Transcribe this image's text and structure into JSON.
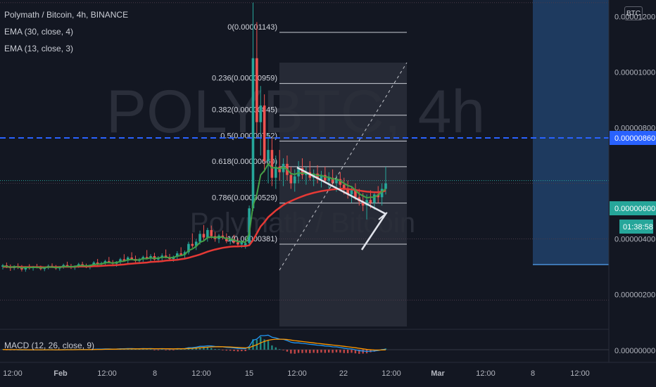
{
  "header": {
    "title": "Polymath / Bitcoin, 4h, BINANCE",
    "currency_badge": "BTC"
  },
  "watermark": {
    "symbol": "POLYBTC, 4h",
    "name": "Polymath / Bitcoin"
  },
  "indicators": {
    "ema_slow": "EMA (30, close, 4)",
    "ema_fast": "EMA (13, close, 3)",
    "macd": "MACD (12, 26, close, 9)"
  },
  "colors": {
    "background": "#131722",
    "up": "#26a69a",
    "down": "#ef5350",
    "ema_slow": "#e53935",
    "ema_fast": "#43a047",
    "fib_zone": "#2a2e39",
    "alert_line": "#2962ff",
    "price_tag": "#26a69a",
    "projection": "#1e3a5f"
  },
  "chart_data": {
    "type": "candlestick",
    "title": "Polymath / Bitcoin, 4h, BINANCE",
    "y_axis": {
      "ticks": [
        "0.00001200",
        "0.00001000",
        "0.00000800",
        "0.00000400",
        "0.00000200",
        "0.00000000"
      ],
      "tick_values": [
        1.2e-05,
        1e-05,
        8e-06,
        4e-06,
        2e-06,
        0.0
      ],
      "range": [
        1.6e-06,
        1.24e-05
      ],
      "scale": "linear"
    },
    "x_axis": {
      "ticks": [
        "12:00",
        "Feb",
        "12:00",
        "8",
        "12:00",
        "15",
        "12:00",
        "22",
        "12:00",
        "Mar",
        "12:00",
        "8",
        "12:00"
      ]
    },
    "price_tags": {
      "current_price": "0.00000600",
      "countdown": "01:38:58",
      "alert_price": "0.00000860"
    },
    "alert_level": 8.6e-06,
    "fibonacci": [
      {
        "level": "0",
        "price": "0.00001143",
        "label": "0(0.00001143)"
      },
      {
        "level": "0.236",
        "price": "0.00000959",
        "label": "0.236(0.00000959)"
      },
      {
        "level": "0.382",
        "price": "0.00000845",
        "label": "0.382(0.00000845)"
      },
      {
        "level": "0.5",
        "price": "0.00000752",
        "label": "0.5(0.00000752)"
      },
      {
        "level": "0.618",
        "price": "0.00000660",
        "label": "0.618(0.00000660)"
      },
      {
        "level": "0.786",
        "price": "0.00000529",
        "label": "0.786(0.00000529)"
      },
      {
        "level": "1",
        "price": "0.00000381",
        "label": "1(0.00000381)"
      }
    ],
    "macd_zero": "0.00000000",
    "ohlc": [
      [
        3e-06,
        3.1e-06,
        2.9e-06,
        3.05e-06
      ],
      [
        3.05e-06,
        3.15e-06,
        2.95e-06,
        3e-06
      ],
      [
        3e-06,
        3.08e-06,
        2.85e-06,
        2.95e-06
      ],
      [
        2.95e-06,
        3.05e-06,
        2.88e-06,
        3.02e-06
      ],
      [
        3.02e-06,
        3.12e-06,
        2.92e-06,
        2.98e-06
      ],
      [
        2.98e-06,
        3.06e-06,
        2.83e-06,
        2.9e-06
      ],
      [
        2.9e-06,
        3.02e-06,
        2.82e-06,
        3e-06
      ],
      [
        3e-06,
        3.09e-06,
        2.9e-06,
        2.95e-06
      ],
      [
        2.95e-06,
        3.03e-06,
        2.86e-06,
        3.01e-06
      ],
      [
        3.01e-06,
        3.1e-06,
        2.94e-06,
        2.97e-06
      ],
      [
        2.97e-06,
        3.04e-06,
        2.87e-06,
        2.92e-06
      ],
      [
        2.92e-06,
        3e-06,
        2.84e-06,
        2.98e-06
      ],
      [
        2.98e-06,
        3.08e-06,
        2.91e-06,
        3.03e-06
      ],
      [
        3.03e-06,
        3.12e-06,
        2.96e-06,
        2.99e-06
      ],
      [
        2.99e-06,
        3.06e-06,
        2.89e-06,
        2.94e-06
      ],
      [
        2.94e-06,
        3.02e-06,
        2.86e-06,
        3e-06
      ],
      [
        3e-06,
        3.11e-06,
        2.93e-06,
        3.06e-06
      ],
      [
        3.06e-06,
        3.18e-06,
        2.98e-06,
        3.02e-06
      ],
      [
        3.02e-06,
        3.1e-06,
        2.92e-06,
        2.97e-06
      ],
      [
        2.97e-06,
        3.05e-06,
        2.89e-06,
        3.03e-06
      ],
      [
        3.03e-06,
        3.14e-06,
        2.96e-06,
        3.09e-06
      ],
      [
        3.09e-06,
        3.18e-06,
        3e-06,
        3.04e-06
      ],
      [
        3.04e-06,
        3.11e-06,
        2.95e-06,
        3e-06
      ],
      [
        3e-06,
        3.08e-06,
        2.91e-06,
        3.06e-06
      ],
      [
        3.06e-06,
        3.2e-06,
        3e-06,
        3.15e-06
      ],
      [
        3.15e-06,
        3.28e-06,
        3.05e-06,
        3.1e-06
      ],
      [
        3.1e-06,
        3.18e-06,
        3e-06,
        3.13e-06
      ],
      [
        3.13e-06,
        3.25e-06,
        3.06e-06,
        3.2e-06
      ],
      [
        3.2e-06,
        3.35e-06,
        3.12e-06,
        3.16e-06
      ],
      [
        3.16e-06,
        3.24e-06,
        3.05e-06,
        3.11e-06
      ],
      [
        3.11e-06,
        3.2e-06,
        3e-06,
        3.18e-06
      ],
      [
        3.18e-06,
        3.32e-06,
        3.1e-06,
        3.27e-06
      ],
      [
        3.27e-06,
        3.45e-06,
        3.18e-06,
        3.22e-06
      ],
      [
        3.22e-06,
        3.38e-06,
        3.12e-06,
        3.33e-06
      ],
      [
        3.33e-06,
        3.52e-06,
        3.25e-06,
        3.28e-06
      ],
      [
        3.28e-06,
        3.4e-06,
        3.16e-06,
        3.21e-06
      ],
      [
        3.21e-06,
        3.32e-06,
        3.1e-06,
        3.27e-06
      ],
      [
        3.27e-06,
        3.4e-06,
        3.18e-06,
        3.35e-06
      ],
      [
        3.35e-06,
        3.6e-06,
        3.26e-06,
        3.3e-06
      ],
      [
        3.3e-06,
        3.45e-06,
        3.2e-06,
        3.38e-06
      ],
      [
        3.38e-06,
        3.5e-06,
        3.22e-06,
        3.26e-06
      ],
      [
        3.26e-06,
        3.38e-06,
        3.15e-06,
        3.32e-06
      ],
      [
        3.32e-06,
        3.48e-06,
        3.22e-06,
        3.4e-06
      ],
      [
        3.4e-06,
        3.62e-06,
        3.3e-06,
        3.34e-06
      ],
      [
        3.34e-06,
        3.46e-06,
        3.2e-06,
        3.28e-06
      ],
      [
        3.28e-06,
        3.4e-06,
        3.18e-06,
        3.36e-06
      ],
      [
        3.36e-06,
        3.56e-06,
        3.28e-06,
        3.48e-06
      ],
      [
        3.48e-06,
        3.7e-06,
        3.38e-06,
        3.43e-06
      ],
      [
        3.43e-06,
        3.58e-06,
        3.3e-06,
        3.52e-06
      ],
      [
        3.52e-06,
        3.9e-06,
        3.44e-06,
        3.82e-06
      ],
      [
        3.82e-06,
        4.2e-06,
        3.68e-06,
        3.75e-06
      ],
      [
        3.75e-06,
        4e-06,
        3.6e-06,
        3.9e-06
      ],
      [
        3.9e-06,
        4.3e-06,
        3.8e-06,
        4.18e-06
      ],
      [
        4.18e-06,
        4.5e-06,
        3.95e-06,
        4.05e-06
      ],
      [
        4.05e-06,
        4.4e-06,
        3.9e-06,
        4.32e-06
      ],
      [
        4.32e-06,
        4.48e-06,
        4.02e-06,
        4.1e-06
      ],
      [
        4.1e-06,
        4.25e-06,
        3.9e-06,
        4e-06
      ],
      [
        4e-06,
        4.18e-06,
        3.85e-06,
        4.12e-06
      ],
      [
        4.12e-06,
        4.3e-06,
        3.98e-06,
        4.05e-06
      ],
      [
        4.05e-06,
        4.2e-06,
        3.85e-06,
        3.92e-06
      ],
      [
        3.92e-06,
        4.08e-06,
        3.8e-06,
        3.98e-06
      ],
      [
        3.98e-06,
        4.15e-06,
        3.84e-06,
        3.88e-06
      ],
      [
        3.88e-06,
        4e-06,
        3.72e-06,
        3.8e-06
      ],
      [
        3.8e-06,
        3.96e-06,
        3.68e-06,
        3.9e-06
      ],
      [
        3.75e-06,
        3.95e-06,
        3.65e-06,
        3.85e-06
      ],
      [
        3.85e-06,
        5.2e-06,
        3.8e-06,
        5.1e-06
      ],
      [
        5.1e-06,
        1.25e-05,
        5e-06,
        1.05e-05
      ],
      [
        1.05e-05,
        1.18e-05,
        7.8e-06,
        8.2e-06
      ],
      [
        8.2e-06,
        9.5e-06,
        7e-06,
        8.8e-06
      ],
      [
        8.8e-06,
        9.2e-06,
        6.4e-06,
        6.8e-06
      ],
      [
        6.8e-06,
        7.8e-06,
        6e-06,
        7.2e-06
      ],
      [
        7.2e-06,
        7.6e-06,
        5.9e-06,
        6.2e-06
      ],
      [
        6.2e-06,
        7e-06,
        5.8e-06,
        6.6e-06
      ],
      [
        6.6e-06,
        7.2e-06,
        6.1e-06,
        6.4e-06
      ],
      [
        6.4e-06,
        6.9e-06,
        5.9e-06,
        6.7e-06
      ],
      [
        6.7e-06,
        7e-06,
        6.1e-06,
        6.3e-06
      ],
      [
        6.3e-06,
        6.6e-06,
        5.8e-06,
        6e-06
      ],
      [
        6e-06,
        6.5e-06,
        5.7e-06,
        6.25e-06
      ],
      [
        6.25e-06,
        6.8e-06,
        6e-06,
        6.55e-06
      ],
      [
        6.55e-06,
        6.9e-06,
        6.15e-06,
        6.3e-06
      ],
      [
        6.3e-06,
        6.6e-06,
        5.95e-06,
        6.4e-06
      ],
      [
        6.4e-06,
        6.8e-06,
        6.1e-06,
        6.2e-06
      ],
      [
        6.2e-06,
        6.5e-06,
        5.9e-06,
        6.35e-06
      ],
      [
        6.35e-06,
        6.65e-06,
        6e-06,
        6.15e-06
      ],
      [
        6.15e-06,
        6.45e-06,
        5.85e-06,
        6.3e-06
      ],
      [
        6.3e-06,
        6.6e-06,
        6e-06,
        6.1e-06
      ],
      [
        6.1e-06,
        6.4e-06,
        5.8e-06,
        6.2e-06
      ],
      [
        6.2e-06,
        6.5e-06,
        5.9e-06,
        6e-06
      ],
      [
        6e-06,
        6.3e-06,
        5.7e-06,
        6.15e-06
      ],
      [
        6.15e-06,
        6.4e-06,
        5.8e-06,
        5.95e-06
      ],
      [
        5.95e-06,
        6.2e-06,
        5.6e-06,
        5.8e-06
      ],
      [
        5.8e-06,
        6.1e-06,
        5.45e-06,
        5.6e-06
      ],
      [
        5.6e-06,
        5.9e-06,
        5.3e-06,
        5.75e-06
      ],
      [
        5.75e-06,
        6e-06,
        5.4e-06,
        5.5e-06
      ],
      [
        5.5e-06,
        5.8e-06,
        5.2e-06,
        5.35e-06
      ],
      [
        5.35e-06,
        5.65e-06,
        5e-06,
        5.2e-06
      ],
      [
        5.2e-06,
        5.6e-06,
        4.7e-06,
        5.4e-06
      ],
      [
        5.4e-06,
        5.75e-06,
        5.1e-06,
        5.3e-06
      ],
      [
        5.3e-06,
        5.7e-06,
        5.05e-06,
        5.6e-06
      ],
      [
        5.6e-06,
        5.9e-06,
        5.3e-06,
        5.5e-06
      ],
      [
        5.5e-06,
        6e-06,
        5.2e-06,
        5.8e-06
      ],
      [
        5.8e-06,
        6.6e-06,
        5.6e-06,
        6e-06
      ]
    ],
    "ema_slow_values": [
      3e-06,
      3e-06,
      2.99e-06,
      2.99e-06,
      3e-06,
      2.99e-06,
      2.99e-06,
      2.99e-06,
      2.99e-06,
      2.99e-06,
      2.99e-06,
      2.98e-06,
      2.99e-06,
      2.99e-06,
      2.99e-06,
      2.99e-06,
      3e-06,
      3e-06,
      3e-06,
      3e-06,
      3.01e-06,
      3.01e-06,
      3.01e-06,
      3.01e-06,
      3.02e-06,
      3.02e-06,
      3.03e-06,
      3.04e-06,
      3.05e-06,
      3.05e-06,
      3.06e-06,
      3.07e-06,
      3.08e-06,
      3.1e-06,
      3.11e-06,
      3.12e-06,
      3.13e-06,
      3.14e-06,
      3.15e-06,
      3.17e-06,
      3.18e-06,
      3.19e-06,
      3.2e-06,
      3.22e-06,
      3.23e-06,
      3.24e-06,
      3.25e-06,
      3.27e-06,
      3.29e-06,
      3.32e-06,
      3.36e-06,
      3.4e-06,
      3.44e-06,
      3.49e-06,
      3.54e-06,
      3.58e-06,
      3.62e-06,
      3.65e-06,
      3.68e-06,
      3.7e-06,
      3.72e-06,
      3.73e-06,
      3.73e-06,
      3.74e-06,
      3.74e-06,
      3.77e-06,
      3.95e-06,
      4.2e-06,
      4.45e-06,
      4.6e-06,
      4.78e-06,
      4.9e-06,
      5.02e-06,
      5.12e-06,
      5.22e-06,
      5.3e-06,
      5.36e-06,
      5.42e-06,
      5.48e-06,
      5.53e-06,
      5.58e-06,
      5.62e-06,
      5.66e-06,
      5.69e-06,
      5.72e-06,
      5.74e-06,
      5.76e-06,
      5.78e-06,
      5.79e-06,
      5.8e-06,
      5.8e-06,
      5.79e-06,
      5.78e-06,
      5.76e-06,
      5.74e-06,
      5.72e-06,
      5.7e-06,
      5.69e-06,
      5.68e-06,
      5.68e-06,
      5.7e-06,
      5.73e-06
    ],
    "ema_fast_values": [
      3.02e-06,
      3.01e-06,
      2.98e-06,
      3e-06,
      2.99e-06,
      2.96e-06,
      2.98e-06,
      2.97e-06,
      2.98e-06,
      2.98e-06,
      2.96e-06,
      2.97e-06,
      2.99e-06,
      2.99e-06,
      2.97e-06,
      2.98e-06,
      3.01e-06,
      3.01e-06,
      3e-06,
      3.01e-06,
      3.04e-06,
      3.04e-06,
      3.03e-06,
      3.04e-06,
      3.08e-06,
      3.09e-06,
      3.1e-06,
      3.14e-06,
      3.15e-06,
      3.13e-06,
      3.15e-06,
      3.19e-06,
      3.2e-06,
      3.25e-06,
      3.26e-06,
      3.24e-06,
      3.25e-06,
      3.29e-06,
      3.29e-06,
      3.32e-06,
      3.3e-06,
      3.31e-06,
      3.34e-06,
      3.34e-06,
      3.32e-06,
      3.33e-06,
      3.39e-06,
      3.4e-06,
      3.44e-06,
      3.58e-06,
      3.64e-06,
      3.73e-06,
      3.88e-06,
      3.93e-06,
      4.05e-06,
      4.07e-06,
      4.05e-06,
      4.07e-06,
      4.06e-06,
      4.01e-06,
      4e-06,
      3.96e-06,
      3.9e-06,
      3.9e-06,
      3.88e-06,
      4.2e-06,
      5.2e-06,
      5.6e-06,
      6.3e-06,
      6.45e-06,
      6.7e-06,
      6.55e-06,
      6.57e-06,
      6.52e-06,
      6.58e-06,
      6.5e-06,
      6.35e-06,
      6.32e-06,
      6.38e-06,
      6.36e-06,
      6.37e-06,
      6.32e-06,
      6.33e-06,
      6.28e-06,
      6.29e-06,
      6.23e-06,
      6.22e-06,
      6.16e-06,
      6.16e-06,
      6.09e-06,
      6e-06,
      5.92e-06,
      5.88e-06,
      5.75e-06,
      5.62e-06,
      5.55e-06,
      5.48e-06,
      5.5e-06,
      5.5e-06,
      5.58e-06,
      5.7e-06,
      5.8e-06
    ]
  }
}
